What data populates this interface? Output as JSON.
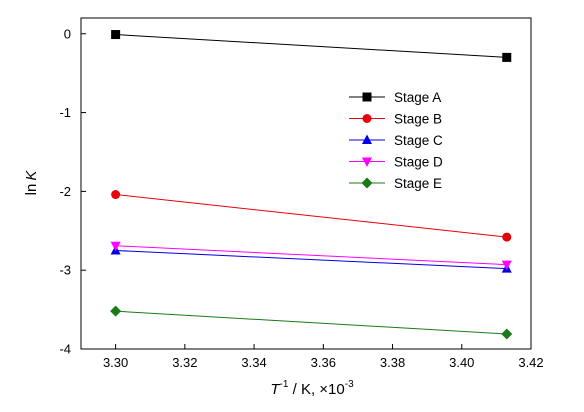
{
  "chart_data": {
    "type": "scatter",
    "x": [
      3.3,
      3.413
    ],
    "xlim": [
      3.29,
      3.42
    ],
    "ylim": [
      -4,
      0.2
    ],
    "xticks": [
      "3.30",
      "3.32",
      "3.34",
      "3.36",
      "3.38",
      "3.40",
      "3.42"
    ],
    "yticks": [
      "0",
      "-1",
      "-2",
      "-3",
      "-4"
    ],
    "xlabel": {
      "main": "T",
      "sup": "-1",
      "rest": " / K, ×10",
      "sup2": "-3"
    },
    "ylabel": {
      "prefix": "ln",
      "var": "K"
    },
    "legend_position": "upper-right",
    "grid": false,
    "series": [
      {
        "name": "Stage A",
        "values": [
          -0.01,
          -0.3
        ],
        "color": "#000000",
        "marker": "square"
      },
      {
        "name": "Stage B",
        "values": [
          -2.04,
          -2.58
        ],
        "color": "#e8000b",
        "marker": "circle"
      },
      {
        "name": "Stage C",
        "values": [
          -2.75,
          -2.98
        ],
        "color": "#0000e6",
        "marker": "triangle-up"
      },
      {
        "name": "Stage D",
        "values": [
          -2.69,
          -2.93
        ],
        "color": "#ff00ff",
        "marker": "triangle-down"
      },
      {
        "name": "Stage E",
        "values": [
          -3.52,
          -3.81
        ],
        "color": "#1a7a1a",
        "marker": "diamond"
      }
    ]
  }
}
